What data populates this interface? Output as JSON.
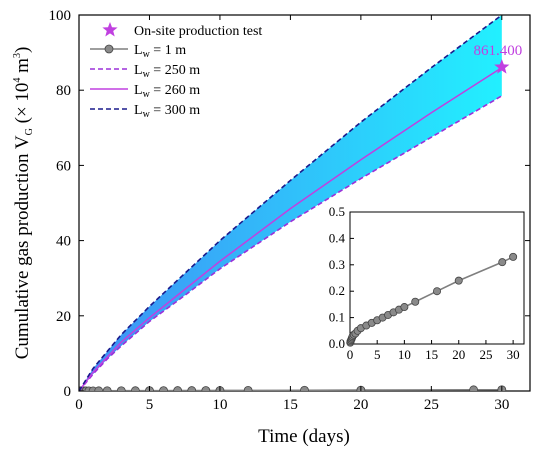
{
  "chart_data": {
    "type": "line",
    "main": {
      "xlabel": "Time (days)",
      "ylabel_parts": {
        "base": "Cumulative gas production V",
        "sub": "G",
        "open": " (× 10",
        "sup": "4",
        "unit": " m",
        "unit_sup": "3",
        "close": ")"
      },
      "xlim": [
        0,
        32
      ],
      "ylim": [
        0,
        100
      ],
      "xticks": [
        0,
        5,
        10,
        15,
        20,
        25,
        30
      ],
      "yticks": [
        0,
        20,
        40,
        60,
        80,
        100
      ],
      "grid": false,
      "legend_position": "top-left",
      "series": [
        {
          "key": "lw1",
          "legend_parts": {
            "pre": "L",
            "sub": "w",
            "post": " = 1  m"
          },
          "style": "line-circle-markers",
          "color": "#7f7f7f",
          "x": [
            0.05,
            0.1,
            0.2,
            0.3,
            0.4,
            0.5,
            0.7,
            1,
            1.4,
            2,
            3,
            4,
            5,
            6,
            7,
            8,
            9,
            10,
            12,
            16,
            20,
            28,
            30
          ],
          "y": [
            0.005,
            0.01,
            0.015,
            0.02,
            0.025,
            0.03,
            0.035,
            0.04,
            0.05,
            0.06,
            0.07,
            0.08,
            0.09,
            0.1,
            0.11,
            0.12,
            0.13,
            0.14,
            0.16,
            0.2,
            0.24,
            0.31,
            0.33
          ]
        },
        {
          "key": "lw250",
          "legend_parts": {
            "pre": "L",
            "sub": "w",
            "post": " = 250 m"
          },
          "style": "dashed",
          "color": "#9b30d9",
          "x": [
            0,
            1,
            2,
            3,
            5,
            7,
            10,
            15,
            20,
            25,
            30
          ],
          "y": [
            0,
            4.5,
            8.5,
            12,
            18.5,
            24,
            32.5,
            45,
            56.5,
            67.5,
            78.5
          ]
        },
        {
          "key": "lw260",
          "legend_parts": {
            "pre": "L",
            "sub": "w",
            "post": " = 260 m"
          },
          "style": "solid",
          "color": "#c040e0",
          "x": [
            0,
            1,
            2,
            3,
            5,
            7,
            10,
            15,
            20,
            25,
            30
          ],
          "y": [
            0,
            5,
            9,
            13,
            19.5,
            25.5,
            34.5,
            48.5,
            61.5,
            74,
            86
          ]
        },
        {
          "key": "lw300",
          "legend_parts": {
            "pre": "L",
            "sub": "w",
            "post": " = 300 m"
          },
          "style": "dashed",
          "color": "#1a1a8c",
          "x": [
            0,
            1,
            2,
            3,
            5,
            7,
            10,
            15,
            20,
            25,
            30
          ],
          "y": [
            0,
            6,
            10.5,
            15,
            22.5,
            29.5,
            40,
            56,
            71.5,
            86,
            100
          ]
        }
      ],
      "band": {
        "between": [
          "lw250",
          "lw300"
        ],
        "color_left": "#3f8ef5",
        "color_right": "#22f0ff"
      },
      "test_point": {
        "legend": "On-site production test",
        "x": 30,
        "y": 86.14,
        "label": "861.400",
        "color": "#c040e0"
      }
    },
    "inset": {
      "xlim": [
        0,
        32
      ],
      "ylim": [
        0,
        0.5
      ],
      "xticks": [
        0,
        5,
        10,
        15,
        20,
        25,
        30
      ],
      "yticks": [
        0.0,
        0.1,
        0.2,
        0.3,
        0.4,
        0.5
      ],
      "ytick_labels": [
        "0.0",
        "0.1",
        "0.2",
        "0.3",
        "0.4",
        "0.5"
      ],
      "series_key": "lw1"
    }
  }
}
